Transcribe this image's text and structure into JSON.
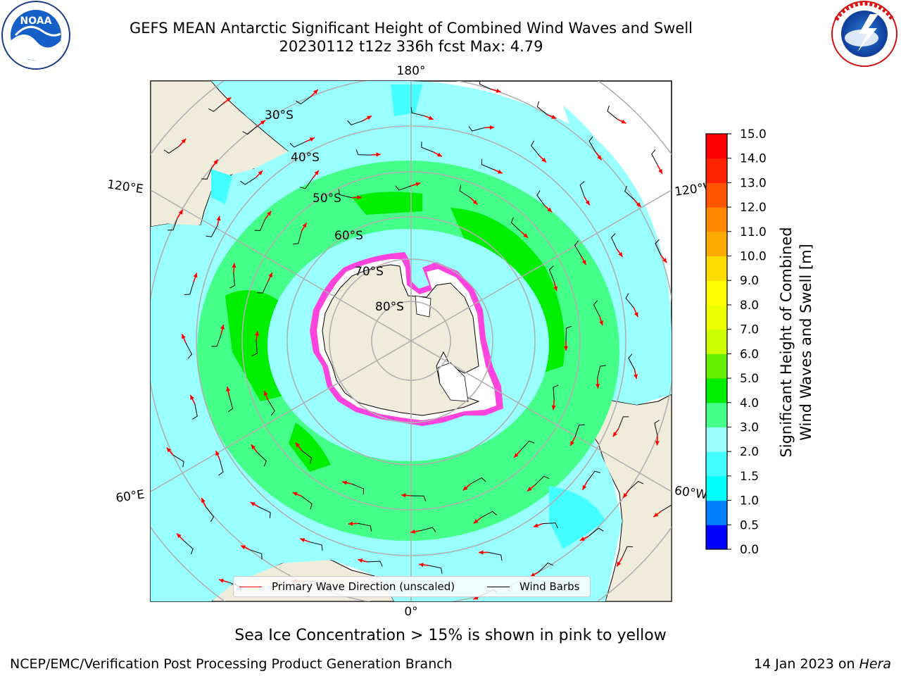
{
  "title": {
    "line1": "GEFS MEAN Antarctic Significant Height of Combined Wind Waves and Swell",
    "line2": "20230112 t12z 336h fcst   Max: 4.79"
  },
  "logos": {
    "left": {
      "text": "NOAA",
      "ring_text": "NATIONAL OCEANIC AND ATMOSPHERIC ADMINISTRATION · U.S. DEPARTMENT OF COMMERCE"
    },
    "right": {
      "ring_text": "NATIONAL WEATHER SERVICE"
    }
  },
  "map": {
    "lon_labels": {
      "top": "180°",
      "bottom": "0°",
      "left_upper": "120°E",
      "left_lower": "60°E",
      "right_upper": "120°W",
      "right_lower": "60°W"
    },
    "lat_labels": [
      "30°S",
      "40°S",
      "50°S",
      "60°S",
      "70°S",
      "80°S"
    ],
    "colors": {
      "land": "#efecdc",
      "grid": "#b0b0b0",
      "ice_edge": "#ff44dd"
    }
  },
  "colorbar": {
    "label_line1": "Significant Height of Combined",
    "label_line2": "Wind Waves and Swell [m]",
    "ticks": [
      "0.0",
      "0.5",
      "1.0",
      "1.5",
      "2.0",
      "3.0",
      "4.0",
      "5.0",
      "6.0",
      "7.0",
      "8.0",
      "9.0",
      "10.0",
      "11.0",
      "12.0",
      "13.0",
      "14.0",
      "15.0"
    ],
    "colors": [
      "#0000ff",
      "#0080ff",
      "#00ffff",
      "#44ffff",
      "#99ffff",
      "#44ff88",
      "#00ee00",
      "#66ee00",
      "#ccff00",
      "#eeff00",
      "#ffff00",
      "#ffdd00",
      "#ffaa00",
      "#ff8800",
      "#ff5500",
      "#ff2200",
      "#ff0000"
    ]
  },
  "legend": {
    "wave_label": "Primary Wave Direction (unscaled)",
    "wave_color": "#ff0000",
    "barb_label": "Wind Barbs",
    "barb_color": "#000000"
  },
  "note": "Sea Ice Concentration > 15% is shown in pink to yellow",
  "footer": {
    "credit": "NCEP/EMC/Verification Post Processing Product Generation Branch",
    "date": "14 Jan 2023 on",
    "machine": "Hera"
  }
}
